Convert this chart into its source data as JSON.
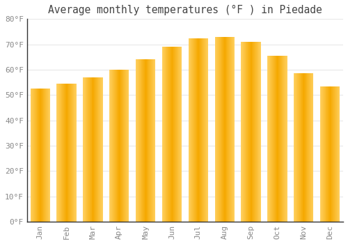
{
  "title": "Average monthly temperatures (°F ) in Piedade",
  "months": [
    "Jan",
    "Feb",
    "Mar",
    "Apr",
    "May",
    "Jun",
    "Jul",
    "Aug",
    "Sep",
    "Oct",
    "Nov",
    "Dec"
  ],
  "values": [
    52.5,
    54.5,
    57.0,
    60.0,
    64.0,
    69.0,
    72.5,
    73.0,
    71.0,
    65.5,
    58.5,
    53.5
  ],
  "bar_color_center": "#F5A800",
  "bar_color_edge": "#FFD060",
  "ylim": [
    0,
    80
  ],
  "yticks": [
    0,
    10,
    20,
    30,
    40,
    50,
    60,
    70,
    80
  ],
  "ytick_labels": [
    "0°F",
    "10°F",
    "20°F",
    "30°F",
    "40°F",
    "50°F",
    "60°F",
    "70°F",
    "80°F"
  ],
  "background_color": "#ffffff",
  "plot_bg_color": "#ffffff",
  "grid_color": "#e8e8e8",
  "title_fontsize": 10.5,
  "tick_fontsize": 8,
  "font_family": "monospace",
  "bar_width": 0.75
}
